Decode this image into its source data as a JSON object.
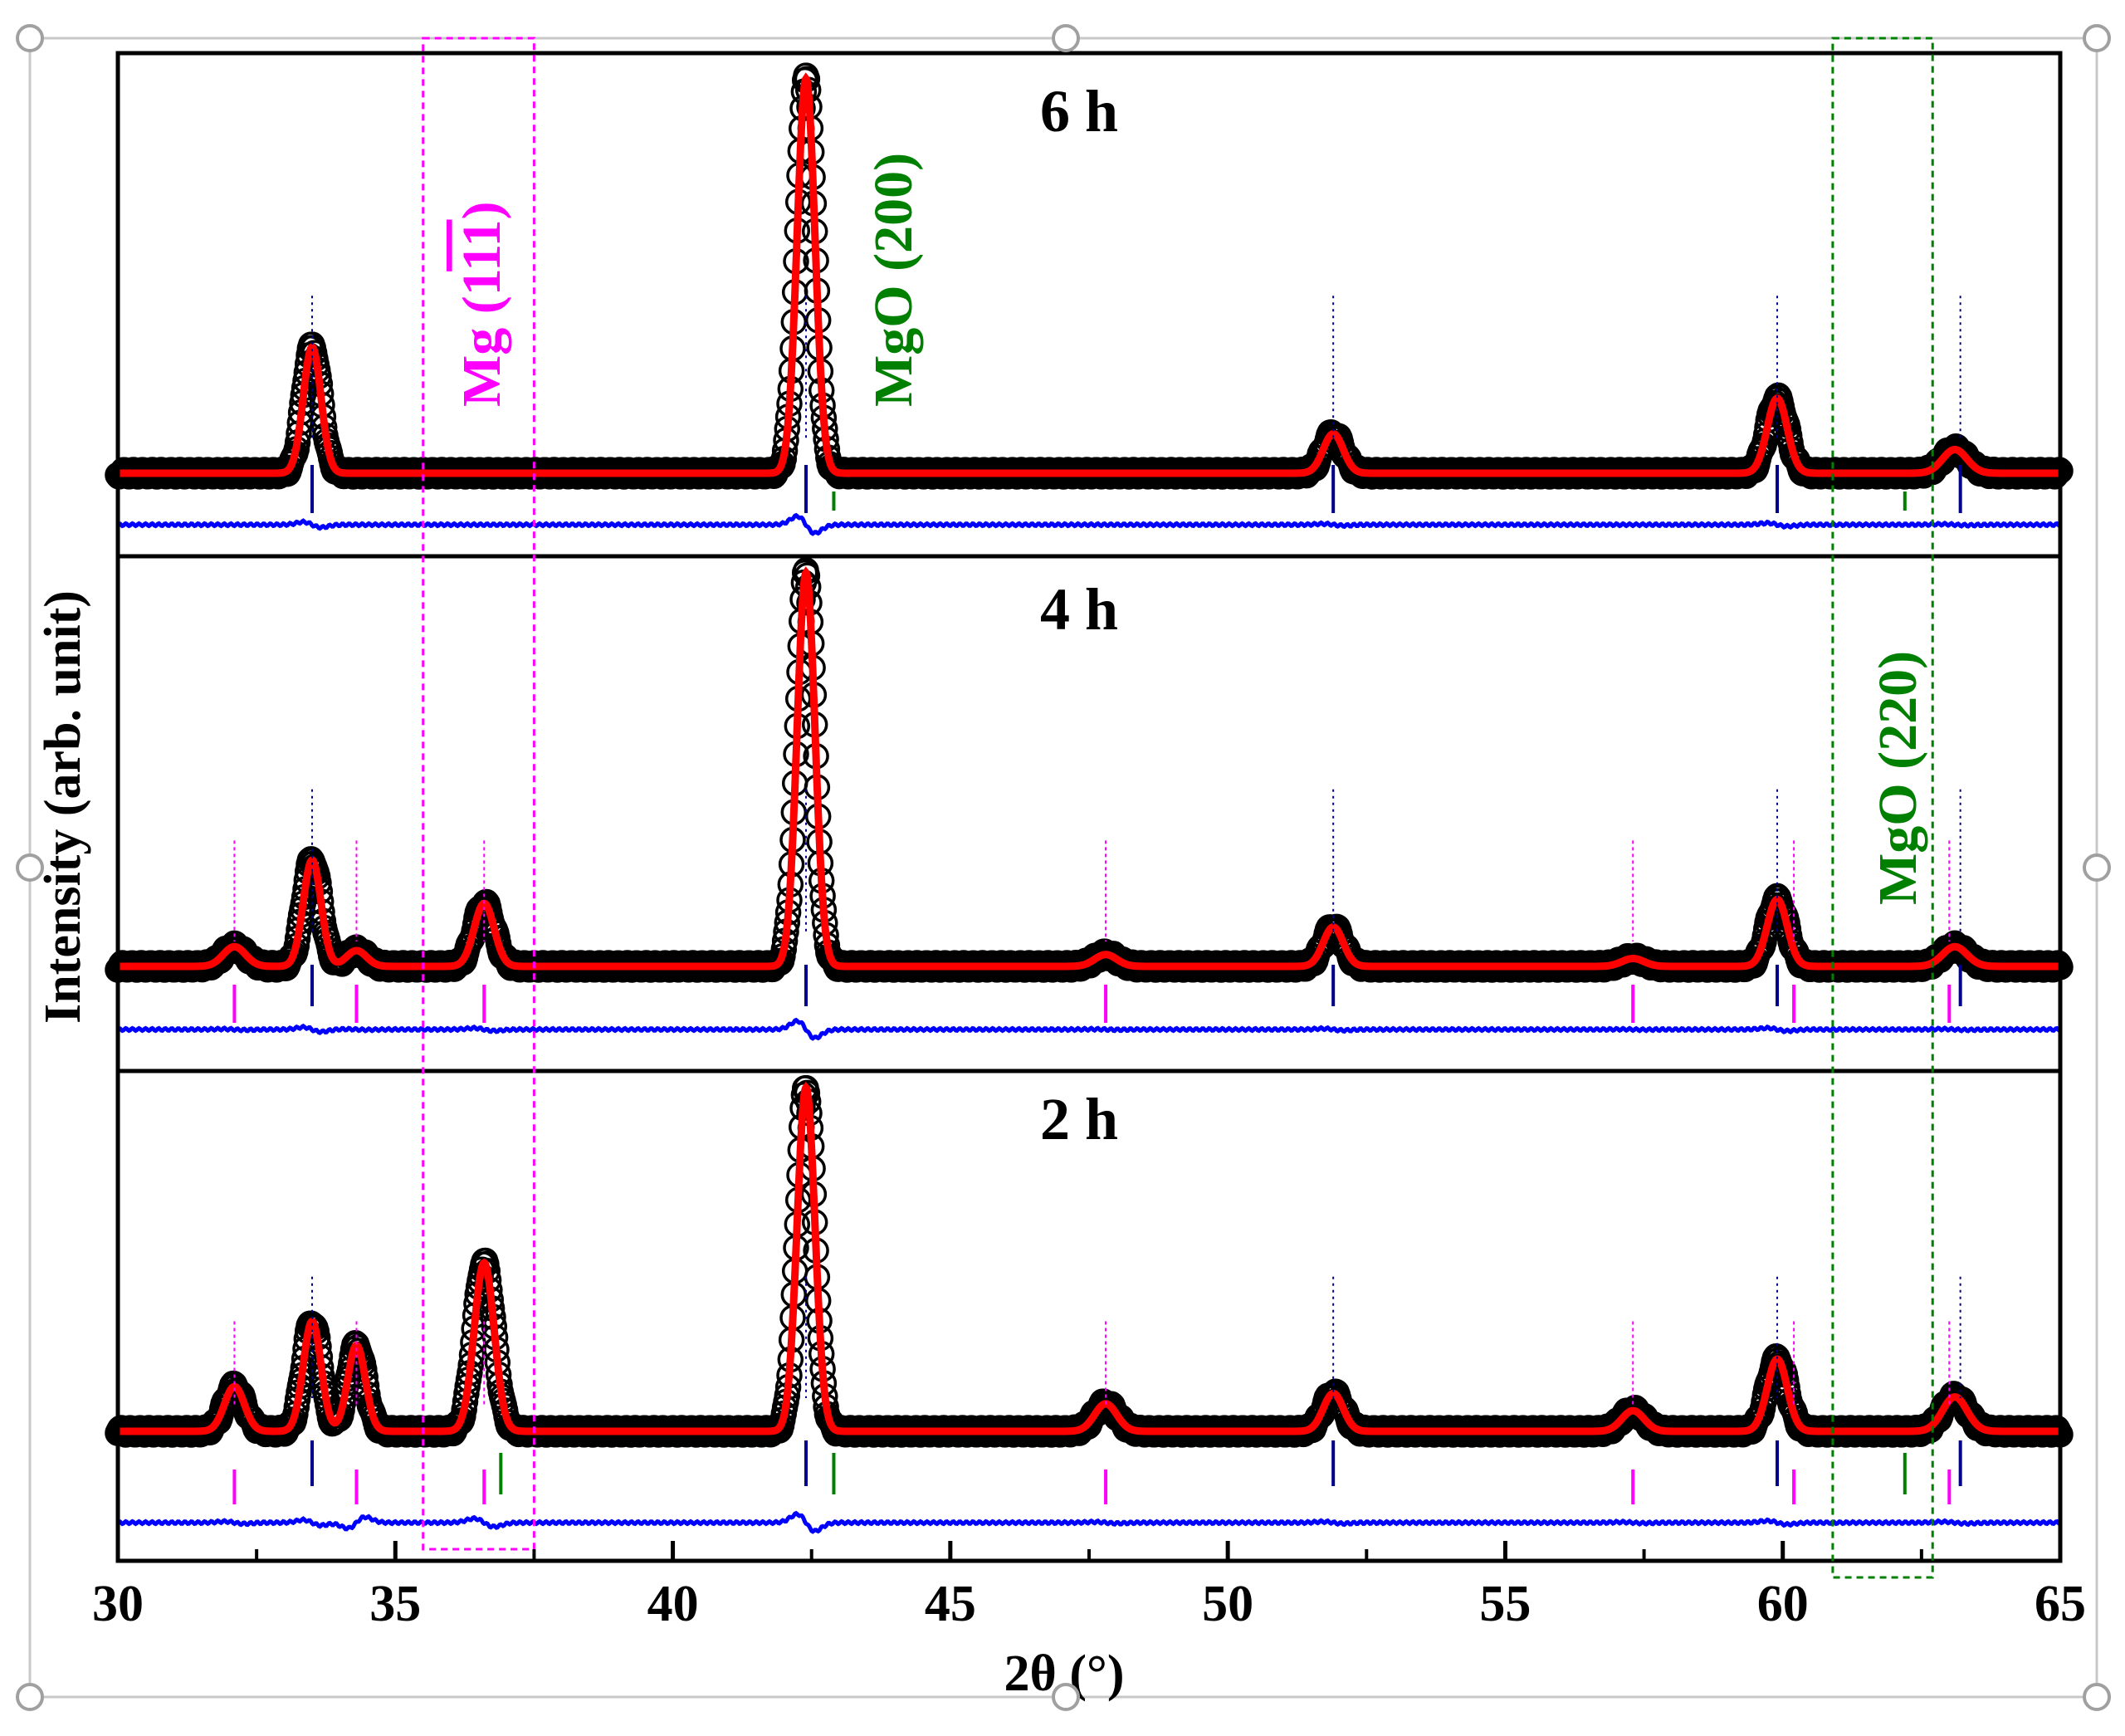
{
  "chart_data": {
    "type": "line",
    "title": "",
    "xlabel": "2θ (°)",
    "ylabel": "Intensity (arb. unit)",
    "xlim": [
      30,
      65
    ],
    "xticks": [
      30,
      35,
      40,
      45,
      50,
      55,
      60,
      65
    ],
    "xtick_labels": [
      "30",
      "35",
      "40",
      "45",
      "50",
      "55",
      "60",
      "65"
    ],
    "colors": {
      "observed": "#000000",
      "calculated": "#ff0000",
      "difference": "#0000ff",
      "main_phase_ticks": "#00008b",
      "mg_phase": "#ff00ff",
      "mgo_phase": "#008000"
    },
    "series_legend": [
      "observed (open circles)",
      "calculated (red line)",
      "difference (blue line)",
      "Bragg positions (vertical ticks)"
    ],
    "panels": [
      {
        "label": "6 h",
        "peaks": [
          {
            "pos": 33.5,
            "height": 0.32,
            "width": 0.16
          },
          {
            "pos": 42.4,
            "height": 1.0,
            "width": 0.16
          },
          {
            "pos": 51.9,
            "height": 0.1,
            "width": 0.18
          },
          {
            "pos": 59.9,
            "height": 0.19,
            "width": 0.18
          },
          {
            "pos": 63.1,
            "height": 0.06,
            "width": 0.22
          }
        ],
        "main_ticks": [
          33.5,
          42.4,
          51.9,
          59.9,
          63.2
        ],
        "mg_ticks": [],
        "mgo_ticks": [
          42.9,
          62.2
        ]
      },
      {
        "label": "4 h",
        "peaks": [
          {
            "pos": 32.1,
            "height": 0.05,
            "width": 0.2
          },
          {
            "pos": 33.5,
            "height": 0.27,
            "width": 0.16
          },
          {
            "pos": 34.3,
            "height": 0.04,
            "width": 0.18
          },
          {
            "pos": 36.6,
            "height": 0.16,
            "width": 0.18
          },
          {
            "pos": 42.4,
            "height": 1.0,
            "width": 0.16
          },
          {
            "pos": 47.8,
            "height": 0.03,
            "width": 0.2
          },
          {
            "pos": 51.9,
            "height": 0.1,
            "width": 0.18
          },
          {
            "pos": 57.3,
            "height": 0.02,
            "width": 0.2
          },
          {
            "pos": 59.9,
            "height": 0.17,
            "width": 0.18
          },
          {
            "pos": 63.1,
            "height": 0.05,
            "width": 0.22
          }
        ],
        "main_ticks": [
          33.5,
          42.4,
          51.9,
          59.9,
          63.2
        ],
        "mg_ticks": [
          32.1,
          34.3,
          36.6,
          47.8,
          57.3,
          60.2,
          63.0
        ],
        "mgo_ticks": []
      },
      {
        "label": "2 h",
        "peaks": [
          {
            "pos": 32.1,
            "height": 0.13,
            "width": 0.18
          },
          {
            "pos": 33.5,
            "height": 0.32,
            "width": 0.16
          },
          {
            "pos": 34.3,
            "height": 0.25,
            "width": 0.16
          },
          {
            "pos": 36.6,
            "height": 0.49,
            "width": 0.18
          },
          {
            "pos": 42.4,
            "height": 1.0,
            "width": 0.16
          },
          {
            "pos": 47.8,
            "height": 0.08,
            "width": 0.2
          },
          {
            "pos": 51.9,
            "height": 0.11,
            "width": 0.18
          },
          {
            "pos": 57.3,
            "height": 0.06,
            "width": 0.2
          },
          {
            "pos": 59.9,
            "height": 0.21,
            "width": 0.18
          },
          {
            "pos": 63.1,
            "height": 0.1,
            "width": 0.22
          }
        ],
        "main_ticks": [
          33.5,
          42.4,
          51.9,
          59.9,
          63.2
        ],
        "mg_ticks": [
          32.1,
          34.3,
          36.6,
          47.8,
          57.3,
          60.2,
          63.0
        ],
        "mgo_ticks": [
          36.9,
          42.9,
          62.2
        ]
      }
    ],
    "annotations": [
      {
        "text": "Mg (1",
        "overbar": "11",
        "suffix": ")",
        "color": "#ff00ff",
        "x_range": [
          35.5,
          37.5
        ]
      },
      {
        "text": "MgO (200)",
        "color": "#008000",
        "x": 43.1
      },
      {
        "text": "MgO (220)",
        "color": "#008000",
        "x_range": [
          60.9,
          62.7
        ]
      }
    ]
  }
}
